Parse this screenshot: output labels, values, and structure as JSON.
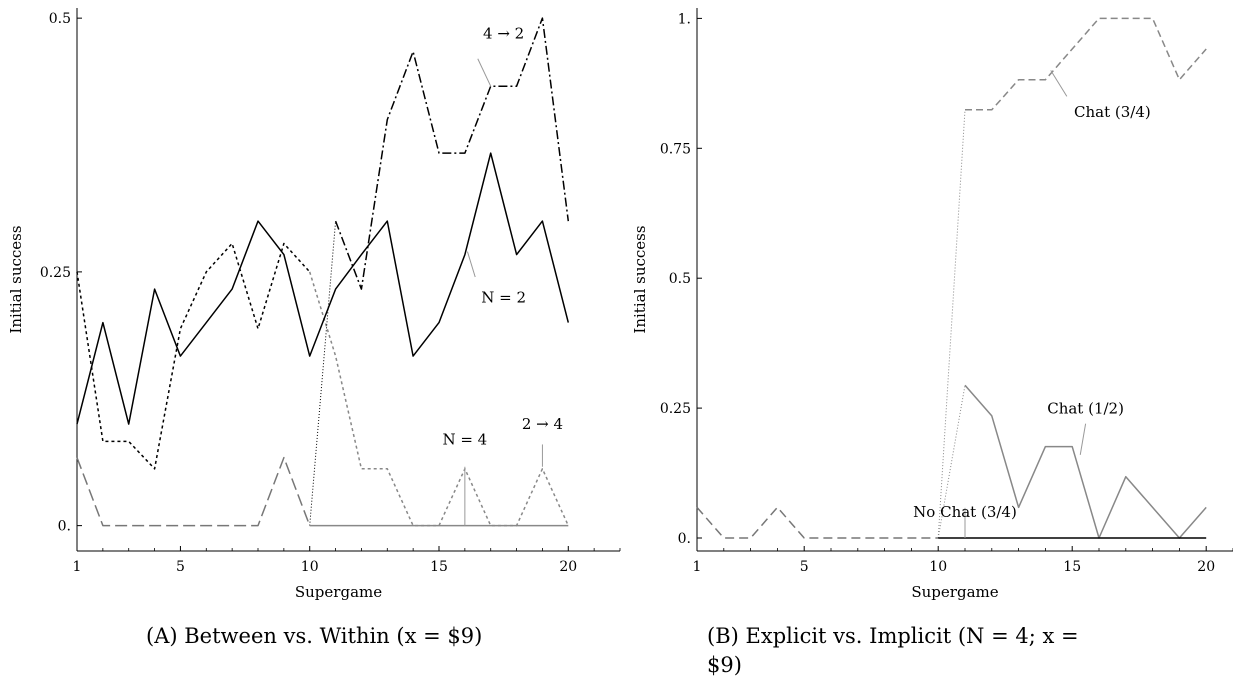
{
  "chart_data": [
    {
      "type": "line",
      "xlabel": "Supergame",
      "ylabel": "Initial success",
      "xlim": [
        1,
        22
      ],
      "ylim": [
        -0.025,
        0.51
      ],
      "x_ticks": [
        "1",
        "5",
        "10",
        "15",
        "20"
      ],
      "x_tick_values": [
        1,
        5,
        10,
        15,
        20
      ],
      "y_ticks": [
        "0.",
        "0.25",
        "0.5"
      ],
      "y_tick_values": [
        0,
        0.25,
        0.5
      ],
      "caption": "(A) Between vs. Within (x = $9)",
      "series": [
        {
          "id": "a-dotted-black",
          "color": "#000000",
          "dash": "3,3",
          "width": 1.5,
          "x": [
            1,
            2,
            3,
            4,
            5,
            6,
            7,
            8,
            9,
            10
          ],
          "y": [
            0.25,
            0.083,
            0.083,
            0.056,
            0.194,
            0.25,
            0.278,
            0.194,
            0.278,
            0.25
          ]
        },
        {
          "id": "a-dotted-gray",
          "color": "#888888",
          "dash": "3,3",
          "width": 1.5,
          "x": [
            10,
            11,
            12,
            13,
            14,
            15,
            16,
            17,
            18,
            19,
            20
          ],
          "y": [
            0.25,
            0.167,
            0.056,
            0.056,
            0.0,
            0.0,
            0.056,
            0.0,
            0.0,
            0.056,
            0.0
          ]
        },
        {
          "id": "a-solid-black",
          "color": "#000000",
          "dash": "",
          "width": 1.5,
          "x": [
            1,
            2,
            3,
            4,
            5,
            6,
            7,
            8,
            9,
            10,
            11,
            12,
            13,
            14,
            15,
            16,
            17,
            18,
            19,
            20
          ],
          "y": [
            0.1,
            0.2,
            0.1,
            0.233,
            0.167,
            0.2,
            0.233,
            0.3,
            0.267,
            0.167,
            0.233,
            0.267,
            0.3,
            0.167,
            0.2,
            0.267,
            0.367,
            0.267,
            0.3,
            0.2
          ]
        },
        {
          "id": "a-dashdot",
          "color": "#000000",
          "dash": "9,3,2,3",
          "width": 1.5,
          "x": [
            11,
            12,
            13,
            14,
            15,
            16,
            17,
            18,
            19,
            20
          ],
          "y": [
            0.3,
            0.233,
            0.4,
            0.467,
            0.367,
            0.367,
            0.433,
            0.433,
            0.5,
            0.3
          ]
        },
        {
          "id": "a-bridge-dotted",
          "color": "#000000",
          "dash": "1,2",
          "width": 1,
          "x": [
            10,
            11
          ],
          "y": [
            0.0,
            0.3
          ]
        },
        {
          "id": "a-dashed-gray",
          "color": "#777777",
          "dash": "12,5",
          "width": 1.5,
          "x": [
            1,
            2,
            3,
            4,
            5,
            6,
            7,
            8,
            9,
            10
          ],
          "y": [
            0.067,
            0.0,
            0.0,
            0.0,
            0.0,
            0.0,
            0.0,
            0.0,
            0.067,
            0.0
          ]
        },
        {
          "id": "a-solid-gray",
          "color": "#888888",
          "dash": "",
          "width": 1.5,
          "x": [
            10,
            20
          ],
          "y": [
            0.0,
            0.0
          ]
        }
      ],
      "annotations": [
        {
          "label": "4 → 2",
          "x": 17.5,
          "y": 0.48,
          "lx1": 16.5,
          "ly1": 0.46,
          "lx2": 17,
          "ly2": 0.433
        },
        {
          "label": "N = 2",
          "x": 17.5,
          "y": 0.22,
          "lx1": 16.4,
          "ly1": 0.245,
          "lx2": 16.1,
          "ly2": 0.27
        },
        {
          "label": "N = 4",
          "x": 16,
          "y": 0.08,
          "lx1": 16,
          "ly1": 0.058,
          "lx2": 16,
          "ly2": 0.0
        },
        {
          "label": "2 → 4",
          "x": 19,
          "y": 0.095,
          "lx1": 19,
          "ly1": 0.08,
          "lx2": 19,
          "ly2": 0.058
        }
      ]
    },
    {
      "type": "line",
      "xlabel": "Supergame",
      "ylabel": "Initial success",
      "xlim": [
        1,
        21
      ],
      "ylim": [
        -0.025,
        1.02
      ],
      "x_ticks": [
        "1",
        "5",
        "10",
        "15",
        "20"
      ],
      "x_tick_values": [
        1,
        5,
        10,
        15,
        20
      ],
      "y_ticks": [
        "0.",
        "0.25",
        "0.5",
        "0.75",
        "1."
      ],
      "y_tick_values": [
        0,
        0.25,
        0.5,
        0.75,
        1.0
      ],
      "caption": "(B) Explicit vs. Implicit (N = 4; x = $9)",
      "series": [
        {
          "id": "b-dashed-gray-early",
          "color": "#777777",
          "dash": "9,5",
          "width": 1.5,
          "x": [
            1,
            2,
            3,
            4,
            5,
            6,
            7,
            8,
            9,
            10
          ],
          "y": [
            0.059,
            0.0,
            0.0,
            0.059,
            0.0,
            0.0,
            0.0,
            0.0,
            0.0,
            0.0
          ]
        },
        {
          "id": "b-dotted-bridge",
          "color": "#888888",
          "dash": "1,2",
          "width": 1,
          "x": [
            10,
            11
          ],
          "y": [
            0.0,
            0.824
          ]
        },
        {
          "id": "b-dotted-bridge2",
          "color": "#888888",
          "dash": "1,2",
          "width": 1,
          "x": [
            10,
            11
          ],
          "y": [
            0.0,
            0.294
          ]
        },
        {
          "id": "b-chat-34",
          "color": "#888888",
          "dash": "7,4",
          "width": 1.5,
          "x": [
            11,
            12,
            13,
            14,
            15,
            16,
            17,
            18,
            19,
            20
          ],
          "y": [
            0.824,
            0.824,
            0.882,
            0.882,
            0.941,
            1.0,
            1.0,
            1.0,
            0.882,
            0.941
          ]
        },
        {
          "id": "b-chat-12",
          "color": "#888888",
          "dash": "",
          "width": 1.5,
          "x": [
            11,
            12,
            13,
            14,
            15,
            16,
            17,
            18,
            19,
            20
          ],
          "y": [
            0.294,
            0.235,
            0.059,
            0.176,
            0.176,
            0.0,
            0.118,
            0.059,
            0.0,
            0.059
          ]
        },
        {
          "id": "b-nochat-34",
          "color": "#000000",
          "dash": "",
          "width": 1.5,
          "x": [
            10,
            20
          ],
          "y": [
            0.0,
            0.0
          ]
        }
      ],
      "annotations": [
        {
          "label": "Chat (3/4)",
          "x": 16.5,
          "y": 0.81,
          "lx1": 14.8,
          "ly1": 0.85,
          "lx2": 14.2,
          "ly2": 0.9
        },
        {
          "label": "Chat (1/2)",
          "x": 15.5,
          "y": 0.24,
          "lx1": 15.5,
          "ly1": 0.22,
          "lx2": 15.3,
          "ly2": 0.16
        },
        {
          "label": "No Chat (3/4)",
          "x": 11,
          "y": 0.04,
          "lx1": 11,
          "ly1": 0.058,
          "lx2": 11,
          "ly2": 0.0
        }
      ]
    }
  ],
  "captions": {
    "a_letter": "A",
    "a_text": "Between vs. Within (x = $9)",
    "b_letter": "B",
    "b_text_line1": "Explicit vs. Implicit (N = 4; x =",
    "b_text_line2": "$9)"
  }
}
